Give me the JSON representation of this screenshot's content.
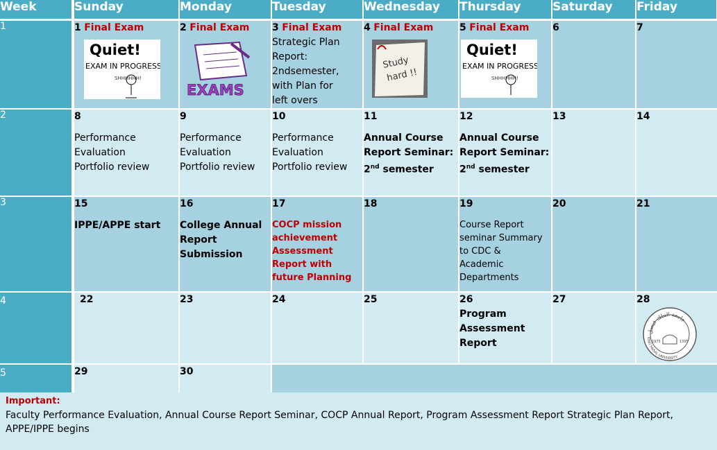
{
  "headers": [
    "Week",
    "Sunday",
    "Monday",
    "Tuesday",
    "Wednesday",
    "Thursday",
    "Saturday",
    "Friday"
  ],
  "weeks": [
    {
      "label": "1",
      "days": [
        {
          "num": "1",
          "title": "Final Exam",
          "image": "quiet-exam-in-progress-image",
          "image_text": [
            "Quiet!",
            "EXAM IN PROGRESS",
            "SHHHHHH!"
          ]
        },
        {
          "num": "2",
          "title": "Final Exam",
          "image": "exams-paper-pencil-image",
          "image_text": [
            "EXAMS"
          ]
        },
        {
          "num": "3",
          "title": "Final Exam",
          "lines": [
            "Strategic Plan",
            "Report:",
            "2ndsemester,",
            "with  Plan for",
            "left overs"
          ]
        },
        {
          "num": "4",
          "title": "Final Exam",
          "image": "study-hard-note-image",
          "image_text": [
            "Study",
            "hard !!"
          ]
        },
        {
          "num": "5",
          "title": "Final Exam",
          "image": "quiet-exam-in-progress-image",
          "image_text": [
            "Quiet!",
            "EXAM IN PROGRESS",
            "SHHHHHH!"
          ]
        },
        {
          "num": "6"
        },
        {
          "num": "7"
        }
      ]
    },
    {
      "label": "2",
      "days": [
        {
          "num": "8",
          "lines": [
            "Performance",
            "Evaluation",
            "Portfolio review"
          ]
        },
        {
          "num": "9",
          "lines": [
            "Performance",
            "Evaluation",
            "Portfolio review"
          ]
        },
        {
          "num": "10",
          "lines": [
            "Performance",
            "Evaluation",
            "Portfolio review"
          ]
        },
        {
          "num": "11",
          "bold_lines": [
            "Annual Course",
            "Report Seminar:"
          ],
          "sup_line": {
            "pre": "2",
            "sup": "nd",
            "post": " semester"
          }
        },
        {
          "num": "12",
          "bold_lines": [
            "Annual Course",
            "Report Seminar:"
          ],
          "sup_line": {
            "pre": "2",
            "sup": "nd",
            "post": " semester"
          }
        },
        {
          "num": "13"
        },
        {
          "num": "14"
        }
      ]
    },
    {
      "label": "3",
      "days": [
        {
          "num": "15",
          "bold_lines": [
            "IPPE/APPE start"
          ]
        },
        {
          "num": "16",
          "bold_lines": [
            "College Annual",
            "Report",
            "Submission"
          ]
        },
        {
          "num": "17",
          "red_lines": [
            "COCP mission",
            "achievement",
            "Assessment",
            "Report with",
            "future Planning"
          ]
        },
        {
          "num": "18"
        },
        {
          "num": "19",
          "small_lines": [
            "Course Report",
            "seminar Summary",
            "to CDC &",
            "Academic",
            "Departments"
          ]
        },
        {
          "num": "20"
        },
        {
          "num": "21"
        }
      ]
    },
    {
      "label": "4",
      "days": [
        {
          "num": "22"
        },
        {
          "num": "23"
        },
        {
          "num": "24"
        },
        {
          "num": "25"
        },
        {
          "num": "26",
          "bold_lines": [
            "Program",
            "Assessment",
            "Report"
          ]
        },
        {
          "num": "27"
        },
        {
          "num": "28",
          "image": "university-seal-logo",
          "image_text": [
            "KING FAISAL UNIVERSITY",
            "جامعة الملك فيصل",
            "1975",
            "1395"
          ]
        }
      ]
    },
    {
      "label": "5",
      "days": [
        {
          "num": "29"
        },
        {
          "num": "30"
        }
      ]
    }
  ],
  "important": {
    "heading": "Important:",
    "text": "Faculty Performance  Evaluation, Annual Course Report Seminar, COCP Annual Report, Program Assessment Report Strategic Plan Report, APPE/IPPE begins"
  },
  "colors": {
    "header": "#4bacc6",
    "dark_row": "#a5d1e0",
    "light_row": "#d2eaf2",
    "accent_red": "#c00000"
  }
}
